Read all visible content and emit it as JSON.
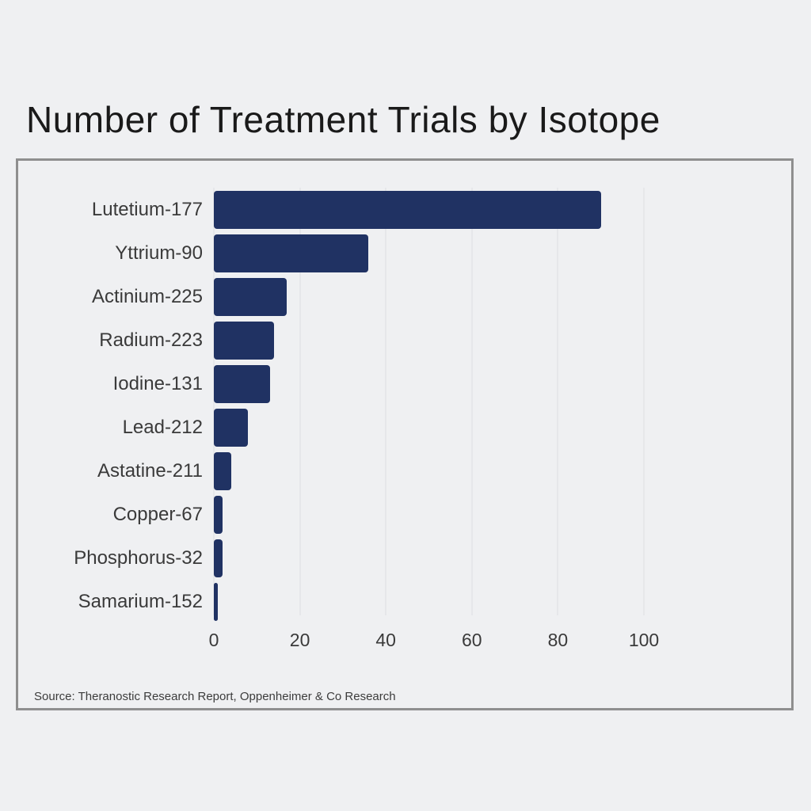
{
  "page": {
    "title": "Number of Treatment Trials by Isotope",
    "source": "Source: Theranostic Research Report, Oppenheimer & Co Research"
  },
  "colors": {
    "background": "#eff0f2",
    "bar": "#203263",
    "frame_border": "#8f8f8f",
    "gridline": "#dcdee1",
    "title_text": "#1a1a1a",
    "label_text": "#3a3a3a"
  },
  "chart_data": {
    "type": "bar",
    "orientation": "horizontal",
    "title": "Number of Treatment Trials by Isotope",
    "categories": [
      "Lutetium-177",
      "Yttrium-90",
      "Actinium-225",
      "Radium-223",
      "Iodine-131",
      "Lead-212",
      "Astatine-211",
      "Copper-67",
      "Phosphorus-32",
      "Samarium-152"
    ],
    "values": [
      90,
      36,
      17,
      14,
      13,
      8,
      4,
      2,
      2,
      1
    ],
    "xlabel": "",
    "ylabel": "",
    "xlim": [
      0,
      100
    ],
    "x_ticks": [
      0,
      20,
      40,
      60,
      80,
      100
    ],
    "grid": "vertical",
    "legend": "none",
    "source": "Source: Theranostic Research Report, Oppenheimer & Co Research"
  }
}
